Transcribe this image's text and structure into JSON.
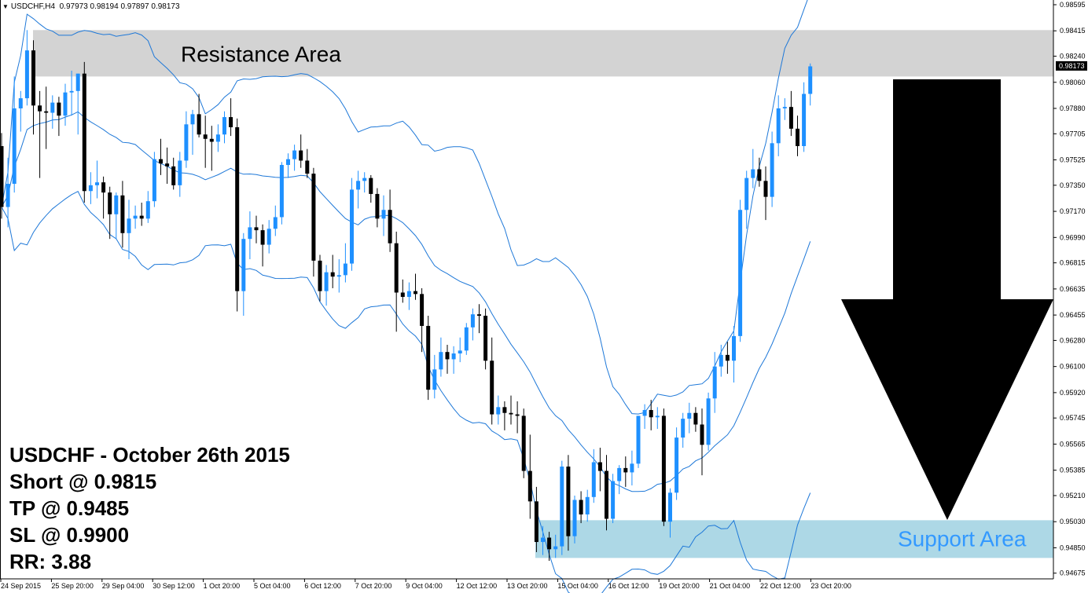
{
  "header": {
    "symbol": "USDCHF,H4",
    "ohlc": "0.97973 0.98194 0.97897 0.98173"
  },
  "zones": {
    "resistance_label": "Resistance Area",
    "support_label": "Support Area",
    "resistance_color": "#d3d3d3",
    "support_color": "#add8e6",
    "support_text_color": "#3399ff"
  },
  "trade_box": {
    "line1": "USDCHF - October 26th 2015",
    "line2": "Short @ 0.9815",
    "line3": "TP @ 0.9485",
    "line4": "SL @ 0.9900",
    "line5": "RR: 3.88"
  },
  "arrow": {
    "direction": "down",
    "color": "#000000"
  },
  "chart_data": {
    "type": "candlestick",
    "title": "",
    "ylim": [
      0.94679,
      0.98595
    ],
    "price_ticks": [
      "0.98595",
      "0.98415",
      "0.98240",
      "0.98060",
      "0.97880",
      "0.97705",
      "0.97525",
      "0.97350",
      "0.97170",
      "0.96990",
      "0.96815",
      "0.96635",
      "0.96455",
      "0.96280",
      "0.96100",
      "0.95920",
      "0.95745",
      "0.95565",
      "0.95385",
      "0.95210",
      "0.95030",
      "0.94850",
      "0.94675"
    ],
    "current_price": "0.98173",
    "time_labels": [
      "24 Sep 2015",
      "25 Sep 20:00",
      "29 Sep 04:00",
      "30 Sep 12:00",
      "1 Oct 20:00",
      "5 Oct 04:00",
      "6 Oct 12:00",
      "7 Oct 20:00",
      "9 Oct 04:00",
      "12 Oct 12:00",
      "13 Oct 20:00",
      "15 Oct 04:00",
      "16 Oct 12:00",
      "19 Oct 20:00",
      "21 Oct 04:00",
      "22 Oct 12:00",
      "23 Oct 20:00"
    ],
    "resistance_zone": [
      0.981,
      0.9842
    ],
    "support_zone": [
      0.9478,
      0.9504
    ],
    "bull_color": "#1e90ff",
    "bear_color": "#000000",
    "band_color": "#1e78d8",
    "grid": false,
    "candles": [
      [
        0.9762,
        0.9771,
        0.9712,
        0.972
      ],
      [
        0.972,
        0.9754,
        0.9706,
        0.9736
      ],
      [
        0.9736,
        0.981,
        0.973,
        0.9788
      ],
      [
        0.9788,
        0.98,
        0.9772,
        0.9795
      ],
      [
        0.9795,
        0.9842,
        0.979,
        0.9828
      ],
      [
        0.9828,
        0.9835,
        0.977,
        0.979
      ],
      [
        0.979,
        0.98,
        0.974,
        0.9786
      ],
      [
        0.9786,
        0.9803,
        0.976,
        0.9785
      ],
      [
        0.9785,
        0.9797,
        0.9774,
        0.9792
      ],
      [
        0.9792,
        0.9796,
        0.9769,
        0.9783
      ],
      [
        0.9783,
        0.9805,
        0.9776,
        0.9799
      ],
      [
        0.9799,
        0.9814,
        0.9783,
        0.98
      ],
      [
        0.98,
        0.9812,
        0.977,
        0.9812
      ],
      [
        0.9812,
        0.982,
        0.9723,
        0.9731
      ],
      [
        0.9731,
        0.9744,
        0.9722,
        0.9735
      ],
      [
        0.9735,
        0.9752,
        0.9726,
        0.9737
      ],
      [
        0.9737,
        0.9741,
        0.9712,
        0.973
      ],
      [
        0.973,
        0.9734,
        0.9698,
        0.9715
      ],
      [
        0.9715,
        0.973,
        0.9698,
        0.9728
      ],
      [
        0.9728,
        0.9738,
        0.9692,
        0.9702
      ],
      [
        0.9702,
        0.9725,
        0.9684,
        0.9712
      ],
      [
        0.9712,
        0.9721,
        0.9705,
        0.9714
      ],
      [
        0.9714,
        0.9723,
        0.9707,
        0.9712
      ],
      [
        0.9712,
        0.9731,
        0.9709,
        0.9724
      ],
      [
        0.9724,
        0.9758,
        0.972,
        0.9753
      ],
      [
        0.9753,
        0.9767,
        0.9742,
        0.975
      ],
      [
        0.975,
        0.9761,
        0.9736,
        0.9748
      ],
      [
        0.9748,
        0.9754,
        0.9732,
        0.9735
      ],
      [
        0.9735,
        0.9758,
        0.9727,
        0.9752
      ],
      [
        0.9752,
        0.9786,
        0.9747,
        0.9777
      ],
      [
        0.9777,
        0.9787,
        0.9756,
        0.9784
      ],
      [
        0.9784,
        0.9798,
        0.9768,
        0.977
      ],
      [
        0.977,
        0.9783,
        0.9747,
        0.9767
      ],
      [
        0.9767,
        0.9776,
        0.9745,
        0.9765
      ],
      [
        0.9765,
        0.9777,
        0.9758,
        0.977
      ],
      [
        0.977,
        0.9786,
        0.9764,
        0.9782
      ],
      [
        0.9782,
        0.9795,
        0.9769,
        0.9775
      ],
      [
        0.9775,
        0.9781,
        0.9648,
        0.9662
      ],
      [
        0.9662,
        0.9702,
        0.9645,
        0.9698
      ],
      [
        0.9698,
        0.9717,
        0.9684,
        0.9706
      ],
      [
        0.9706,
        0.9714,
        0.9695,
        0.9704
      ],
      [
        0.9704,
        0.9708,
        0.9679,
        0.9694
      ],
      [
        0.9694,
        0.9711,
        0.9688,
        0.9705
      ],
      [
        0.9705,
        0.9721,
        0.97,
        0.9713
      ],
      [
        0.9713,
        0.9751,
        0.9708,
        0.9749
      ],
      [
        0.9749,
        0.9757,
        0.974,
        0.9753
      ],
      [
        0.9753,
        0.9763,
        0.9745,
        0.9759
      ],
      [
        0.9759,
        0.977,
        0.9747,
        0.9752
      ],
      [
        0.9752,
        0.976,
        0.974,
        0.9743
      ],
      [
        0.9743,
        0.9747,
        0.9672,
        0.9683
      ],
      [
        0.9683,
        0.9687,
        0.9655,
        0.9662
      ],
      [
        0.9662,
        0.968,
        0.9652,
        0.9675
      ],
      [
        0.9675,
        0.9687,
        0.9664,
        0.9672
      ],
      [
        0.9672,
        0.9684,
        0.9661,
        0.9673
      ],
      [
        0.9673,
        0.9695,
        0.9668,
        0.9681
      ],
      [
        0.9681,
        0.974,
        0.9676,
        0.9732
      ],
      [
        0.9732,
        0.9745,
        0.9719,
        0.9738
      ],
      [
        0.9738,
        0.9744,
        0.973,
        0.974
      ],
      [
        0.974,
        0.9742,
        0.9723,
        0.9729
      ],
      [
        0.9729,
        0.9733,
        0.9706,
        0.9712
      ],
      [
        0.9712,
        0.9728,
        0.97,
        0.9718
      ],
      [
        0.9718,
        0.9732,
        0.9689,
        0.9695
      ],
      [
        0.9695,
        0.9703,
        0.9634,
        0.9661
      ],
      [
        0.9661,
        0.967,
        0.9654,
        0.9658
      ],
      [
        0.9658,
        0.9668,
        0.9649,
        0.9662
      ],
      [
        0.9662,
        0.9674,
        0.9656,
        0.966
      ],
      [
        0.966,
        0.9664,
        0.962,
        0.9638
      ],
      [
        0.9638,
        0.9645,
        0.9587,
        0.9594
      ],
      [
        0.9594,
        0.9618,
        0.9588,
        0.9608
      ],
      [
        0.9608,
        0.963,
        0.9603,
        0.962
      ],
      [
        0.962,
        0.9625,
        0.9605,
        0.9615
      ],
      [
        0.9615,
        0.9624,
        0.9605,
        0.9619
      ],
      [
        0.9619,
        0.963,
        0.9613,
        0.9621
      ],
      [
        0.9621,
        0.964,
        0.9618,
        0.9637
      ],
      [
        0.9637,
        0.965,
        0.9628,
        0.9646
      ],
      [
        0.9646,
        0.9653,
        0.9633,
        0.9645
      ],
      [
        0.9645,
        0.965,
        0.9608,
        0.9614
      ],
      [
        0.9614,
        0.963,
        0.957,
        0.9577
      ],
      [
        0.9577,
        0.959,
        0.957,
        0.9582
      ],
      [
        0.9582,
        0.9586,
        0.9566,
        0.9578
      ],
      [
        0.9578,
        0.959,
        0.957,
        0.9577
      ],
      [
        0.9577,
        0.9586,
        0.9564,
        0.9576
      ],
      [
        0.9576,
        0.9581,
        0.9533,
        0.9538
      ],
      [
        0.9538,
        0.9563,
        0.9505,
        0.9517
      ],
      [
        0.9517,
        0.9527,
        0.9482,
        0.9489
      ],
      [
        0.9489,
        0.95,
        0.948,
        0.9492
      ],
      [
        0.9492,
        0.9496,
        0.9476,
        0.9484
      ],
      [
        0.9484,
        0.9494,
        0.9478,
        0.9486
      ],
      [
        0.9486,
        0.9545,
        0.948,
        0.9541
      ],
      [
        0.9541,
        0.9549,
        0.9483,
        0.9493
      ],
      [
        0.9493,
        0.9521,
        0.9488,
        0.9518
      ],
      [
        0.9518,
        0.9524,
        0.9502,
        0.9508
      ],
      [
        0.9508,
        0.9525,
        0.9503,
        0.952
      ],
      [
        0.952,
        0.9553,
        0.9516,
        0.9544
      ],
      [
        0.9544,
        0.9554,
        0.9524,
        0.9538
      ],
      [
        0.9538,
        0.9549,
        0.9497,
        0.9505
      ],
      [
        0.9505,
        0.9536,
        0.9502,
        0.9531
      ],
      [
        0.9531,
        0.9542,
        0.9522,
        0.954
      ],
      [
        0.954,
        0.9548,
        0.9527,
        0.9537
      ],
      [
        0.9537,
        0.9552,
        0.9528,
        0.9543
      ],
      [
        0.9543,
        0.9576,
        0.954,
        0.9576
      ],
      [
        0.9576,
        0.9584,
        0.9567,
        0.958
      ],
      [
        0.958,
        0.9587,
        0.9566,
        0.9575
      ],
      [
        0.9575,
        0.9582,
        0.9567,
        0.9576
      ],
      [
        0.9576,
        0.9581,
        0.95,
        0.9503
      ],
      [
        0.9503,
        0.9526,
        0.9492,
        0.9523
      ],
      [
        0.9523,
        0.9568,
        0.9518,
        0.9561
      ],
      [
        0.9561,
        0.9578,
        0.9554,
        0.9574
      ],
      [
        0.9574,
        0.9585,
        0.9564,
        0.9578
      ],
      [
        0.9578,
        0.9582,
        0.9565,
        0.957
      ],
      [
        0.957,
        0.9581,
        0.9535,
        0.9556
      ],
      [
        0.9556,
        0.9592,
        0.9552,
        0.9588
      ],
      [
        0.9588,
        0.962,
        0.9578,
        0.961
      ],
      [
        0.961,
        0.9625,
        0.9603,
        0.9618
      ],
      [
        0.9618,
        0.9627,
        0.9605,
        0.9614
      ],
      [
        0.9614,
        0.9638,
        0.9599,
        0.9631
      ],
      [
        0.9631,
        0.9725,
        0.9627,
        0.9718
      ],
      [
        0.9718,
        0.9745,
        0.9705,
        0.974
      ],
      [
        0.974,
        0.976,
        0.9733,
        0.9746
      ],
      [
        0.9746,
        0.9754,
        0.9734,
        0.9738
      ],
      [
        0.9738,
        0.9748,
        0.9711,
        0.9727
      ],
      [
        0.9727,
        0.9772,
        0.972,
        0.9764
      ],
      [
        0.9764,
        0.9797,
        0.9755,
        0.9788
      ],
      [
        0.9788,
        0.9795,
        0.978,
        0.9789
      ],
      [
        0.9789,
        0.98,
        0.9769,
        0.9774
      ],
      [
        0.9774,
        0.9783,
        0.9755,
        0.9762
      ],
      [
        0.9762,
        0.9806,
        0.9758,
        0.9798
      ],
      [
        0.9798,
        0.9819,
        0.979,
        0.9817
      ]
    ]
  }
}
